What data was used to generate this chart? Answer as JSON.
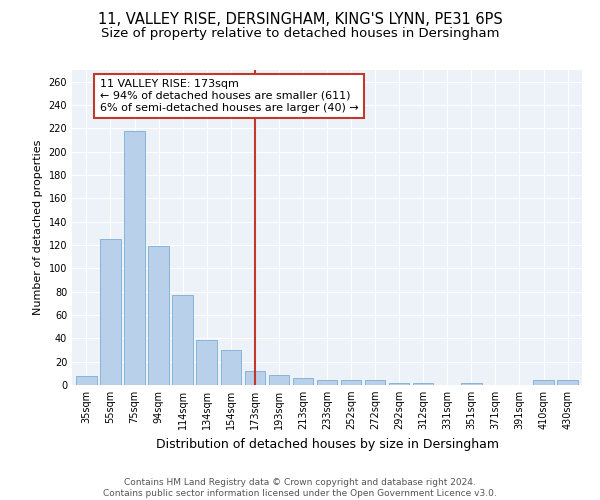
{
  "title": "11, VALLEY RISE, DERSINGHAM, KING'S LYNN, PE31 6PS",
  "subtitle": "Size of property relative to detached houses in Dersingham",
  "xlabel": "Distribution of detached houses by size in Dersingham",
  "ylabel": "Number of detached properties",
  "categories": [
    "35sqm",
    "55sqm",
    "75sqm",
    "94sqm",
    "114sqm",
    "134sqm",
    "154sqm",
    "173sqm",
    "193sqm",
    "213sqm",
    "233sqm",
    "252sqm",
    "272sqm",
    "292sqm",
    "312sqm",
    "331sqm",
    "351sqm",
    "371sqm",
    "391sqm",
    "410sqm",
    "430sqm"
  ],
  "values": [
    8,
    125,
    218,
    119,
    77,
    39,
    30,
    12,
    9,
    6,
    4,
    4,
    4,
    2,
    2,
    0,
    2,
    0,
    0,
    4,
    4
  ],
  "bar_color": "#b8d0ea",
  "bar_edge_color": "#7badd4",
  "vline_x_index": 7,
  "vline_color": "#c0392b",
  "annotation_line1": "11 VALLEY RISE: 173sqm",
  "annotation_line2": "← 94% of detached houses are smaller (611)",
  "annotation_line3": "6% of semi-detached houses are larger (40) →",
  "annotation_box_color": "white",
  "annotation_box_edge": "#c0392b",
  "ylim": [
    0,
    270
  ],
  "yticks": [
    0,
    20,
    40,
    60,
    80,
    100,
    120,
    140,
    160,
    180,
    200,
    220,
    240,
    260
  ],
  "footer_line1": "Contains HM Land Registry data © Crown copyright and database right 2024.",
  "footer_line2": "Contains public sector information licensed under the Open Government Licence v3.0.",
  "bg_color": "#edf2f9",
  "grid_color": "#ffffff",
  "title_fontsize": 10.5,
  "subtitle_fontsize": 9.5,
  "xlabel_fontsize": 9,
  "ylabel_fontsize": 8,
  "tick_fontsize": 7,
  "annot_fontsize": 8,
  "footer_fontsize": 6.5
}
